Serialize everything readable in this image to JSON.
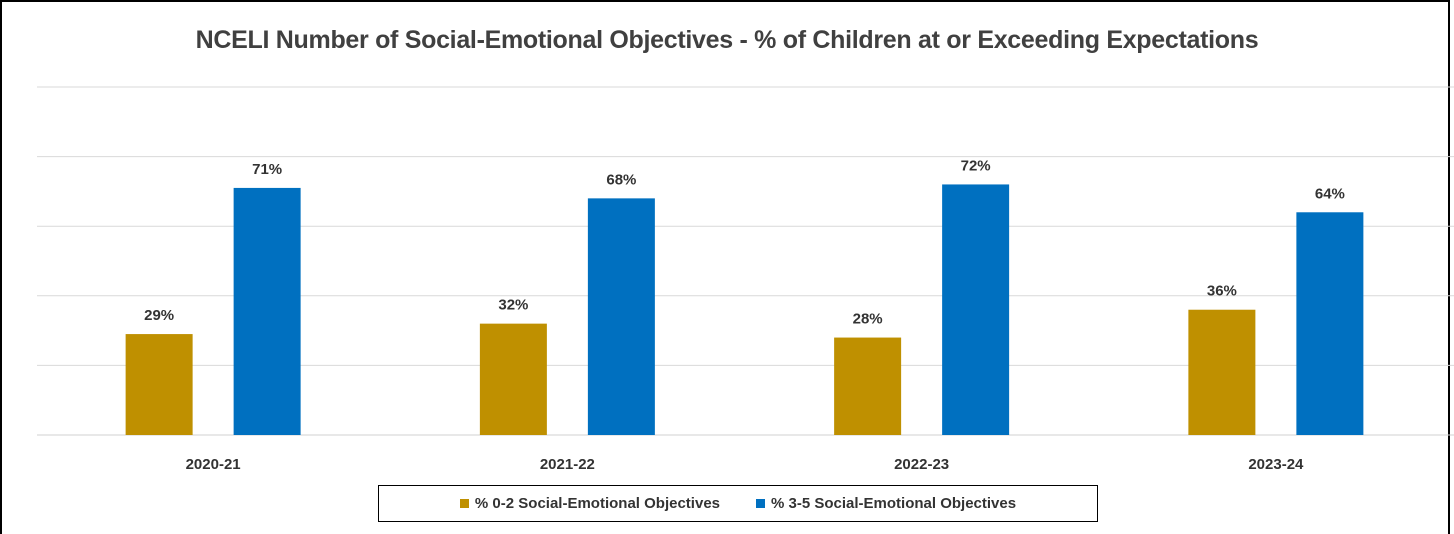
{
  "chart_data": {
    "type": "bar",
    "title": "NCELI Number of Social-Emotional Objectives - % of Children at or Exceeding Expectations",
    "categories": [
      "2020-21",
      "2021-22",
      "2022-23",
      "2023-24"
    ],
    "series": [
      {
        "name": "% 0-2 Social-Emotional Objectives",
        "values": [
          29,
          32,
          28,
          36
        ],
        "labels": [
          "29%",
          "32%",
          "28%",
          "36%"
        ],
        "color": "#BF9000"
      },
      {
        "name": "% 3-5 Social-Emotional Objectives",
        "values": [
          71,
          68,
          72,
          64
        ],
        "labels": [
          "71%",
          "68%",
          "72%",
          "64%"
        ],
        "color": "#0070C0"
      }
    ],
    "ylim": [
      0,
      100
    ],
    "grid": true,
    "legend_position": "bottom",
    "xlabel": "",
    "ylabel": ""
  }
}
